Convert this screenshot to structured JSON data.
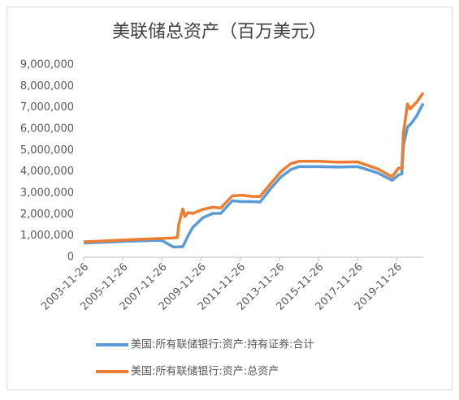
{
  "chart_data": {
    "type": "line",
    "title": "美联储总资产（百万美元）",
    "x": [
      "2003-11-26",
      "2005-11-26",
      "2007-08-01",
      "2007-11-26",
      "2008-06-25",
      "2008-09-10",
      "2008-10-01",
      "2008-12-17",
      "2009-01-28",
      "2009-03-25",
      "2009-06-24",
      "2009-12-30",
      "2010-06-30",
      "2010-11-24",
      "2011-06-29",
      "2011-12-28",
      "2012-06-27",
      "2012-11-28",
      "2013-06-26",
      "2013-12-25",
      "2014-06-25",
      "2014-11-26",
      "2015-11-25",
      "2016-11-23",
      "2017-11-22",
      "2018-11-28",
      "2019-08-28",
      "2019-09-25",
      "2019-12-25",
      "2020-02-26",
      "2020-03-25",
      "2020-06-10",
      "2020-07-29",
      "2020-11-25",
      "2021-03-31"
    ],
    "series": [
      {
        "name": "美国:所有联储银行:资产:持有证券:合计",
        "color": "#5b9bd5",
        "values": [
          660000,
          740000,
          790000,
          780000,
          480000,
          480000,
          490000,
          490000,
          700000,
          1000000,
          1400000,
          1850000,
          2050000,
          2050000,
          2640000,
          2600000,
          2600000,
          2580000,
          3250000,
          3760000,
          4100000,
          4240000,
          4240000,
          4220000,
          4240000,
          3950000,
          3600000,
          3650000,
          3850000,
          3900000,
          5200000,
          6100000,
          6200000,
          6600000,
          7200000
        ]
      },
      {
        "name": "美国:所有联储银行:资产:总资产",
        "color": "#ed7d31",
        "values": [
          720000,
          800000,
          870000,
          880000,
          900000,
          920000,
          1500000,
          2260000,
          1900000,
          2090000,
          2050000,
          2240000,
          2340000,
          2300000,
          2870000,
          2900000,
          2850000,
          2840000,
          3480000,
          4010000,
          4380000,
          4490000,
          4490000,
          4450000,
          4460000,
          4140000,
          3760000,
          3860000,
          4170000,
          4160000,
          5800000,
          7170000,
          6940000,
          7250000,
          7700000
        ]
      }
    ],
    "xlim": [
      "2003-11-26",
      "2021-03-31"
    ],
    "xticks": [
      "2003-11-26",
      "2005-11-26",
      "2007-11-26",
      "2009-11-26",
      "2011-11-26",
      "2013-11-26",
      "2015-11-26",
      "2017-11-26",
      "2019-11-26"
    ],
    "ylim": [
      0,
      9000000
    ],
    "yticks": [
      0,
      {
        "value": 1000000,
        "label": "1,000,000"
      },
      {
        "value": 2000000,
        "label": "2,000,000"
      },
      {
        "value": 3000000,
        "label": "3,000,000"
      },
      {
        "value": 4000000,
        "label": "4,000,000"
      },
      {
        "value": 5000000,
        "label": "5,000,000"
      },
      {
        "value": 6000000,
        "label": "6,000,000"
      },
      {
        "value": 7000000,
        "label": "7,000,000"
      },
      {
        "value": 8000000,
        "label": "8,000,000"
      },
      {
        "value": 9000000,
        "label": "9,000,000"
      }
    ],
    "grid": false
  }
}
